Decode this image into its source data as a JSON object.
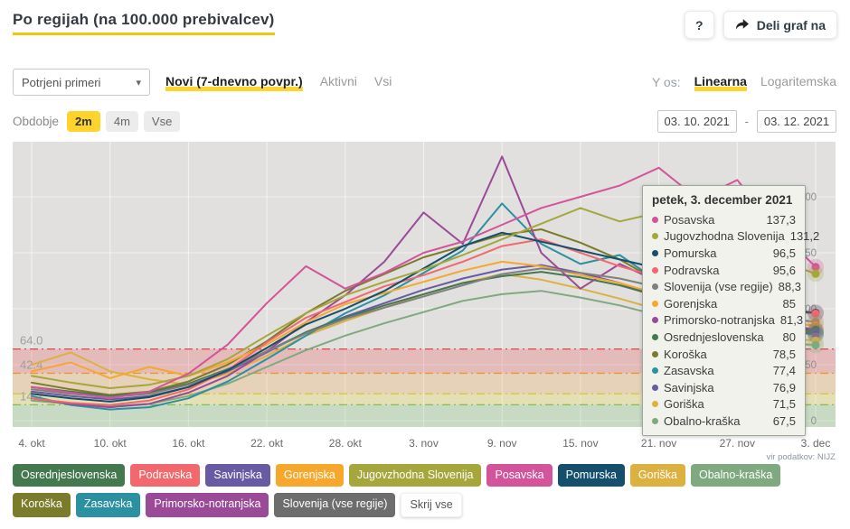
{
  "header": {
    "title": "Po regijah (na 100.000 prebivalcev)",
    "help_label": "?",
    "share_label": "Deli graf na"
  },
  "filters": {
    "metric_dropdown": {
      "value": "Potrjeni primeri"
    },
    "tabs": [
      {
        "label": "Novi (7-dnevno povpr.)",
        "active": true
      },
      {
        "label": "Aktivni",
        "active": false
      },
      {
        "label": "Vsi",
        "active": false
      }
    ],
    "y_axis": {
      "label": "Y os:",
      "options": [
        {
          "label": "Linearna",
          "active": true
        },
        {
          "label": "Logaritemska",
          "active": false
        }
      ]
    },
    "period": {
      "label": "Obdobje",
      "options": [
        {
          "label": "2m",
          "active": true
        },
        {
          "label": "4m",
          "active": false
        },
        {
          "label": "Vse",
          "active": false
        }
      ]
    },
    "date_range": {
      "from": "03. 10. 2021",
      "separator": "-",
      "to": "03. 12. 2021"
    }
  },
  "accent_color": "#fdd32c",
  "chart_data": {
    "type": "line",
    "title": "Po regijah (na 100.000 prebivalcev)",
    "source": "vir podatkov: NIJZ",
    "plot_bg": "#e1e0de",
    "ylim": [
      0,
      249
    ],
    "y_right_ticks": [
      0,
      50,
      100,
      150,
      200
    ],
    "x_tick_days": [
      1,
      7,
      13,
      19,
      25,
      31,
      37,
      43,
      49,
      55,
      61
    ],
    "x_tick_labels": [
      "4. okt",
      "10. okt",
      "16. okt",
      "22. okt",
      "28. okt",
      "3. nov",
      "9. nov",
      "15. nov",
      "21. nov",
      "27. nov",
      "3. dec"
    ],
    "thresholds": [
      {
        "value": 64.0,
        "label": "64.0",
        "color": "#e04545"
      },
      {
        "value": 42.4,
        "label": "42.4",
        "color": "#f0942d"
      },
      {
        "value": 24.0,
        "label": "",
        "color": "#d8c52e"
      },
      {
        "value": 14.2,
        "label": "14.2",
        "color": "#7fbf4f"
      }
    ],
    "bands": [
      {
        "from": 42.4,
        "to": 64.0,
        "color": "rgba(233,92,92,0.28)"
      },
      {
        "from": 24.0,
        "to": 42.4,
        "color": "rgba(245,166,77,0.25)"
      },
      {
        "from": 14.2,
        "to": 24.0,
        "color": "rgba(238,222,88,0.30)"
      },
      {
        "from": -8.0,
        "to": 14.2,
        "color": "rgba(128,200,120,0.25)"
      }
    ],
    "sample_days": [
      1,
      4,
      7,
      10,
      13,
      16,
      19,
      22,
      25,
      28,
      31,
      34,
      37,
      40,
      43,
      46,
      49,
      52,
      55,
      58,
      61
    ],
    "series": [
      {
        "name": "Posavska",
        "color": "#d4549c",
        "values": [
          30,
          25,
          20,
          26,
          42,
          68,
          105,
          138,
          118,
          132,
          150,
          160,
          175,
          190,
          200,
          210,
          226,
          198,
          215,
          172,
          137.3
        ]
      },
      {
        "name": "Jugovzhodna Slovenija",
        "color": "#a5a63b",
        "values": [
          40,
          34,
          29,
          32,
          40,
          55,
          76,
          96,
          112,
          124,
          135,
          148,
          162,
          176,
          190,
          178,
          186,
          172,
          158,
          144,
          131.2
        ]
      },
      {
        "name": "Pomurska",
        "color": "#154f6d",
        "values": [
          24,
          20,
          17,
          21,
          30,
          45,
          65,
          86,
          100,
          116,
          136,
          156,
          168,
          160,
          152,
          144,
          136,
          122,
          108,
          99,
          96.5
        ]
      },
      {
        "name": "Podravska",
        "color": "#f2686c",
        "values": [
          20,
          16,
          14,
          18,
          28,
          45,
          70,
          92,
          106,
          120,
          130,
          142,
          156,
          162,
          150,
          138,
          128,
          114,
          104,
          99,
          95.6
        ]
      },
      {
        "name": "Slovenija (vse regije)",
        "color": "#808080",
        "values": [
          28,
          24,
          21,
          24,
          32,
          45,
          62,
          78,
          91,
          101,
          111,
          121,
          131,
          136,
          132,
          127,
          119,
          109,
          99,
          92,
          88.3
        ]
      },
      {
        "name": "Gorenjska",
        "color": "#f7a72c",
        "values": [
          44,
          52,
          38,
          48,
          40,
          52,
          68,
          88,
          104,
          114,
          124,
          134,
          142,
          138,
          130,
          123,
          113,
          103,
          94,
          88,
          85
        ]
      },
      {
        "name": "Primorsko-notranjska",
        "color": "#9a4a97",
        "values": [
          20,
          15,
          12,
          15,
          25,
          40,
          62,
          88,
          112,
          142,
          186,
          158,
          236,
          150,
          118,
          140,
          124,
          104,
          94,
          87,
          81.3
        ]
      },
      {
        "name": "Osrednjeslovenska",
        "color": "#44784e",
        "values": [
          30,
          26,
          22,
          25,
          33,
          46,
          62,
          79,
          92,
          103,
          113,
          123,
          129,
          133,
          128,
          121,
          111,
          101,
          91,
          84,
          80
        ]
      },
      {
        "name": "Koroška",
        "color": "#7b7b2c",
        "values": [
          34,
          28,
          23,
          26,
          35,
          50,
          71,
          96,
          116,
          131,
          146,
          156,
          166,
          171,
          159,
          144,
          124,
          104,
          91,
          82,
          78.5
        ]
      },
      {
        "name": "Zasavska",
        "color": "#2b90a0",
        "values": [
          22,
          14,
          10,
          12,
          20,
          35,
          55,
          76,
          96,
          112,
          132,
          152,
          194,
          158,
          140,
          148,
          124,
          104,
          89,
          80,
          77.4
        ]
      },
      {
        "name": "Savinjska",
        "color": "#685ba3",
        "values": [
          26,
          22,
          19,
          22,
          30,
          44,
          61,
          79,
          93,
          105,
          117,
          127,
          135,
          139,
          132,
          123,
          111,
          99,
          89,
          81,
          76.9
        ]
      },
      {
        "name": "Goriška",
        "color": "#ddb13f",
        "values": [
          50,
          61,
          44,
          37,
          32,
          42,
          58,
          76,
          89,
          101,
          113,
          123,
          131,
          126,
          118,
          109,
          99,
          89,
          81,
          74,
          71.5
        ]
      },
      {
        "name": "Obalno-kraška",
        "color": "#7fa97e",
        "values": [
          18,
          15,
          13,
          15,
          22,
          33,
          48,
          63,
          76,
          87,
          97,
          107,
          113,
          116,
          110,
          103,
          94,
          85,
          77,
          70,
          67.5
        ]
      }
    ]
  },
  "tooltip": {
    "title": "petek, 3. december 2021",
    "rows": [
      {
        "name": "Posavska",
        "value": "137,3",
        "color": "#d4549c"
      },
      {
        "name": "Jugovzhodna Slovenija",
        "value": "131,2",
        "color": "#a5a63b"
      },
      {
        "name": "Pomurska",
        "value": "96,5",
        "color": "#154f6d"
      },
      {
        "name": "Podravska",
        "value": "95,6",
        "color": "#f2686c"
      },
      {
        "name": "Slovenija (vse regije)",
        "value": "88,3",
        "color": "#808080"
      },
      {
        "name": "Gorenjska",
        "value": "85",
        "color": "#f7a72c"
      },
      {
        "name": "Primorsko-notranjska",
        "value": "81,3",
        "color": "#9a4a97"
      },
      {
        "name": "Osrednjeslovenska",
        "value": "80",
        "color": "#44784e"
      },
      {
        "name": "Koroška",
        "value": "78,5",
        "color": "#7b7b2c"
      },
      {
        "name": "Zasavska",
        "value": "77,4",
        "color": "#2b90a0"
      },
      {
        "name": "Savinjska",
        "value": "76,9",
        "color": "#685ba3"
      },
      {
        "name": "Goriška",
        "value": "71,5",
        "color": "#ddb13f"
      },
      {
        "name": "Obalno-kraška",
        "value": "67,5",
        "color": "#7fa97e"
      }
    ]
  },
  "legend": {
    "buttons": [
      {
        "label": "Osrednjeslovenska",
        "color": "#44784e"
      },
      {
        "label": "Podravska",
        "color": "#f2686c"
      },
      {
        "label": "Savinjska",
        "color": "#685ba3"
      },
      {
        "label": "Gorenjska",
        "color": "#f7a72c"
      },
      {
        "label": "Jugovzhodna Slovenija",
        "color": "#a5a63b"
      },
      {
        "label": "Posavska",
        "color": "#d4549c"
      },
      {
        "label": "Pomurska",
        "color": "#154f6d"
      },
      {
        "label": "Goriška",
        "color": "#ddb13f"
      },
      {
        "label": "Obalno-kraška",
        "color": "#7fa97e"
      },
      {
        "label": "Koroška",
        "color": "#7b7b2c"
      },
      {
        "label": "Zasavska",
        "color": "#2b90a0"
      },
      {
        "label": "Primorsko-notranjska",
        "color": "#9a4a97"
      },
      {
        "label": "Slovenija (vse regije)",
        "color": "#6d6d6d"
      }
    ],
    "hide_all_label": "Skrij vse"
  }
}
